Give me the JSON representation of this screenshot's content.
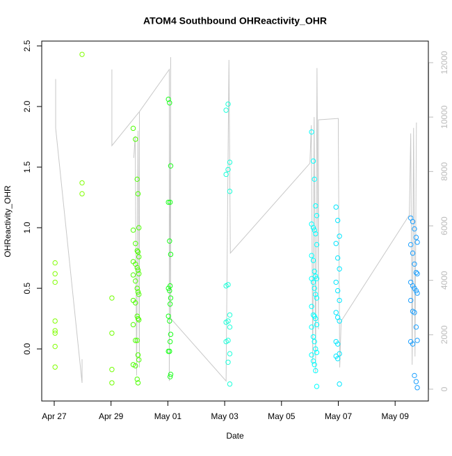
{
  "chart_data": {
    "type": "scatter",
    "title": "ATOM4 Southbound OHReactivity_OHR",
    "x_label": "Date",
    "y_label": "OHReactivity_OHR",
    "xlim": [
      -0.44,
      13.17
    ],
    "ylim": [
      -0.43,
      2.54
    ],
    "y2lim": [
      -435,
      12793
    ],
    "xticks": [
      {
        "value": 0,
        "label": "Apr 27"
      },
      {
        "value": 2,
        "label": "Apr 29"
      },
      {
        "value": 4,
        "label": "May 01"
      },
      {
        "value": 6,
        "label": "May 03"
      },
      {
        "value": 8,
        "label": "May 05"
      },
      {
        "value": 10,
        "label": "May 07"
      },
      {
        "value": 12,
        "label": "May 09"
      }
    ],
    "yticks": [
      {
        "value": 0,
        "label": "0.0"
      },
      0.5,
      {
        "value": 1,
        "label": "1.0"
      },
      1.5,
      {
        "value": 2,
        "label": "2.0"
      },
      2.5
    ],
    "y2ticks": [
      0,
      2000,
      4000,
      6000,
      8000,
      10000,
      12000
    ],
    "y2_color": "#bbbbbb",
    "series": [
      {
        "color": "#80ff00",
        "x": [
          0.03,
          0.03,
          0.03,
          0.03,
          0.03,
          0.03,
          0.03,
          0.03
        ],
        "values": [
          0.71,
          0.62,
          0.55,
          0.23,
          0.15,
          0.13,
          0.02,
          -0.15
        ]
      },
      {
        "color": "#80ff00",
        "x": [
          0.98,
          0.98,
          0.98
        ],
        "values": [
          2.43,
          1.37,
          1.28
        ]
      },
      {
        "color": "#70ff00",
        "x": [
          2.03,
          2.03,
          2.03,
          2.03
        ],
        "values": [
          0.42,
          0.13,
          -0.17,
          -0.28
        ]
      },
      {
        "color": "#4cff00",
        "x": [
          2.78,
          2.86,
          2.92,
          2.95,
          2.98,
          2.78,
          2.86,
          2.92,
          2.95,
          2.98,
          2.78,
          2.86,
          2.92,
          2.95,
          2.98,
          2.78,
          2.86,
          2.92,
          2.95,
          2.98,
          2.78,
          2.86,
          2.92,
          2.95,
          2.98,
          2.78,
          2.86,
          2.92,
          2.95,
          2.98,
          2.78,
          2.86,
          2.92,
          2.95
        ],
        "values": [
          1.82,
          1.73,
          1.4,
          1.28,
          1.0,
          0.98,
          0.87,
          0.81,
          0.8,
          0.76,
          0.72,
          0.7,
          0.67,
          0.65,
          0.62,
          0.61,
          0.56,
          0.5,
          0.47,
          0.45,
          0.4,
          0.38,
          0.27,
          0.25,
          0.24,
          0.2,
          0.07,
          0.07,
          -0.05,
          -0.09,
          -0.13,
          -0.14,
          -0.25,
          -0.28
        ]
      },
      {
        "color": "#1aff1a",
        "x": [
          4.02,
          4.06,
          4.1,
          4.08,
          4.02,
          4.06,
          4.1,
          4.08,
          4.02,
          4.06,
          4.1,
          4.08,
          4.02,
          4.06,
          4.1,
          4.08,
          4.02,
          4.06,
          4.1,
          4.08
        ],
        "values": [
          2.06,
          2.03,
          1.51,
          1.21,
          1.21,
          0.89,
          0.78,
          0.52,
          0.5,
          0.48,
          0.42,
          0.37,
          0.27,
          0.23,
          0.12,
          0.06,
          -0.02,
          -0.02,
          -0.21,
          -0.23
        ]
      },
      {
        "color": "#19ffd9",
        "x": [
          6.12,
          6.05,
          6.18,
          6.12,
          6.05,
          6.18,
          6.12,
          6.05,
          6.18,
          6.12,
          6.05,
          6.18,
          6.12,
          6.05,
          6.18,
          6.12,
          6.18
        ],
        "values": [
          2.02,
          1.97,
          1.54,
          1.48,
          1.44,
          1.3,
          0.53,
          0.52,
          0.28,
          0.23,
          0.22,
          0.18,
          0.07,
          0.06,
          -0.04,
          -0.11,
          -0.29
        ]
      },
      {
        "color": "#00ffff",
        "x": [
          9.06,
          9.12,
          9.16,
          9.2,
          9.24,
          9.06,
          9.12,
          9.16,
          9.2,
          9.24,
          9.06,
          9.12,
          9.16,
          9.2,
          9.24,
          9.06,
          9.12,
          9.16,
          9.2,
          9.24,
          9.06,
          9.12,
          9.16,
          9.2,
          9.24,
          9.06,
          9.12,
          9.16,
          9.2,
          9.24,
          9.06,
          9.12,
          9.16,
          9.2,
          9.24
        ],
        "values": [
          1.79,
          1.55,
          1.4,
          1.18,
          1.1,
          1.03,
          1.0,
          0.98,
          0.95,
          0.86,
          0.77,
          0.73,
          0.64,
          0.6,
          0.58,
          0.58,
          0.55,
          0.5,
          0.45,
          0.42,
          0.35,
          0.28,
          0.27,
          0.25,
          0.2,
          0.18,
          0.1,
          0.06,
          0.0,
          -0.03,
          -0.05,
          -0.1,
          -0.13,
          -0.18,
          -0.31
        ]
      },
      {
        "color": "#00e6ff",
        "x": [
          9.92,
          9.98,
          10.04,
          9.92,
          9.98,
          10.04,
          9.92,
          9.98,
          10.04,
          9.92,
          9.98,
          10.04,
          9.92,
          9.98,
          10.04,
          9.92,
          9.98,
          10.04
        ],
        "values": [
          1.17,
          1.06,
          0.93,
          0.87,
          0.75,
          0.66,
          0.55,
          0.48,
          0.4,
          0.3,
          0.26,
          0.23,
          0.06,
          0.04,
          -0.04,
          -0.06,
          -0.08,
          -0.29
        ]
      },
      {
        "color": "#1a9fff",
        "x": [
          12.55,
          12.62,
          12.68,
          12.74,
          12.78,
          12.55,
          12.62,
          12.68,
          12.74,
          12.78,
          12.55,
          12.62,
          12.68,
          12.74,
          12.78,
          12.55,
          12.62,
          12.68,
          12.74,
          12.78,
          12.55,
          12.62,
          12.68,
          12.74,
          12.78
        ],
        "values": [
          1.08,
          1.05,
          0.99,
          0.92,
          0.88,
          0.86,
          0.79,
          0.7,
          0.63,
          0.62,
          0.55,
          0.52,
          0.5,
          0.48,
          0.46,
          0.4,
          0.31,
          0.3,
          0.18,
          0.07,
          0.06,
          0.04,
          -0.22,
          -0.27,
          -0.32
        ]
      },
      {
        "type": "line",
        "axis": "y2",
        "color": "#c8c8c8",
        "x": [
          0.05,
          0.05,
          0.98,
          0.98,
          null,
          2.03,
          2.03,
          3.0,
          null,
          2.8,
          2.85,
          2.9,
          2.95,
          3.0,
          3.0,
          4.05,
          4.05,
          4.1,
          4.1,
          6.05,
          6.15,
          6.2,
          9.0,
          9.05,
          9.1,
          9.15,
          9.2,
          9.25,
          9.3,
          9.3,
          10.0,
          10.0,
          10.05,
          10.1,
          12.5,
          12.55,
          12.6,
          12.65,
          12.7,
          12.75
        ],
        "values": [
          11400,
          9600,
          230,
          1100,
          null,
          11750,
          8950,
          10200,
          null,
          8500,
          9300,
          500,
          9500,
          800,
          10200,
          11750,
          300,
          12200,
          2600,
          300,
          12100,
          5000,
          8300,
          9700,
          900,
          10000,
          600,
          11800,
          2200,
          9900,
          9950,
          9400,
          800,
          2500,
          6400,
          9400,
          900,
          9600,
          1200,
          9800
        ]
      }
    ]
  }
}
